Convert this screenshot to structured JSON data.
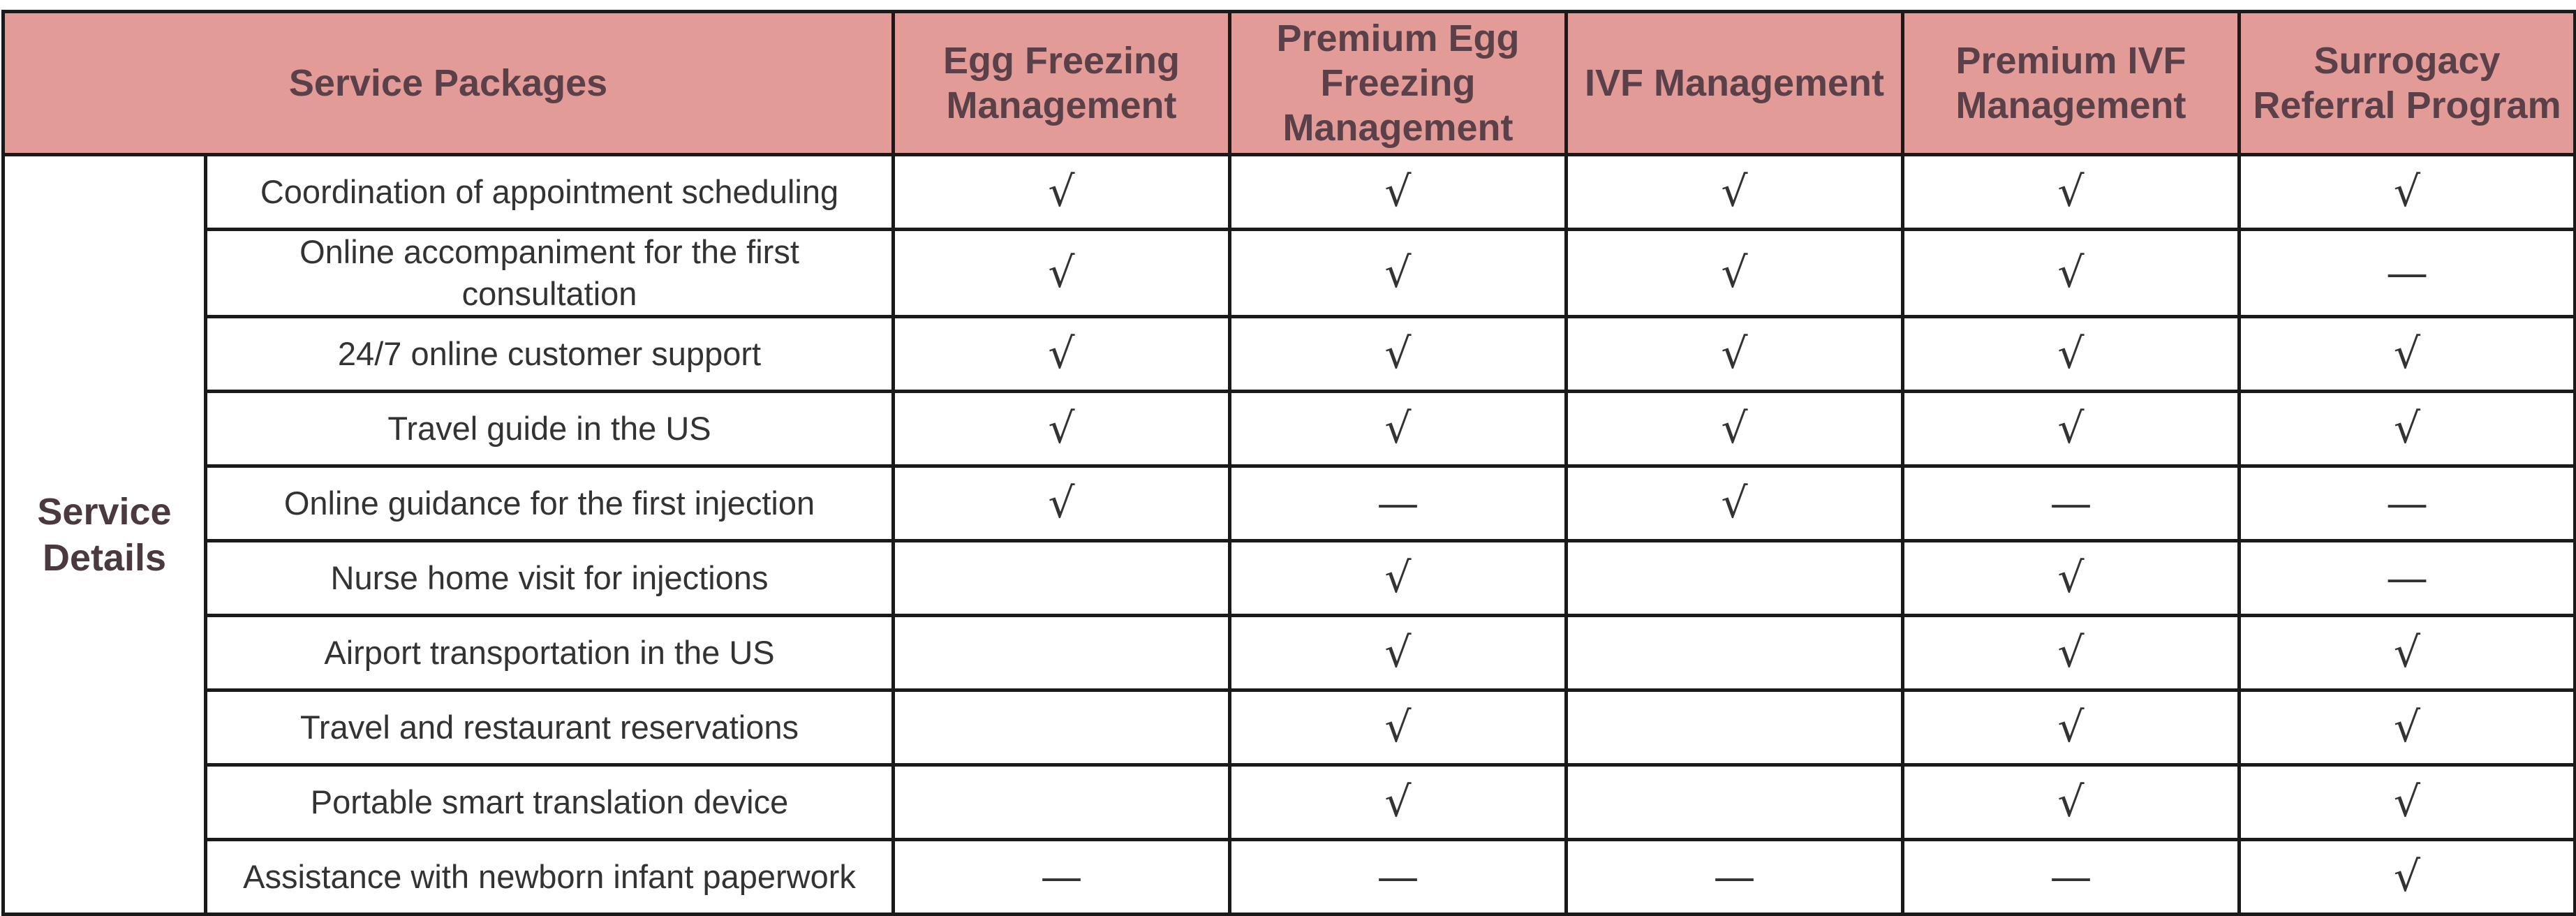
{
  "header": {
    "packages_label": "Service Packages",
    "columns": [
      "Egg Freezing Management",
      "Premium Egg Freezing Management",
      "IVF Management",
      "Premium IVF Management",
      "Surrogacy Referral Program"
    ]
  },
  "category": "Service Details",
  "rows": [
    {
      "label": "Coordination of appointment scheduling",
      "cells": [
        "√",
        "√",
        "√",
        "√",
        "√"
      ]
    },
    {
      "label": "Online accompaniment for the first consultation",
      "cells": [
        "√",
        "√",
        "√",
        "√",
        "—"
      ]
    },
    {
      "label": "24/7 online customer support",
      "cells": [
        "√",
        "√",
        "√",
        "√",
        "√"
      ]
    },
    {
      "label": "Travel guide in the US",
      "cells": [
        "√",
        "√",
        "√",
        "√",
        "√"
      ]
    },
    {
      "label": "Online guidance for the first injection",
      "cells": [
        "√",
        "—",
        "√",
        "—",
        "—"
      ]
    },
    {
      "label": "Nurse home visit for injections",
      "cells": [
        "",
        "√",
        "",
        "√",
        "—"
      ]
    },
    {
      "label": "Airport transportation in the US",
      "cells": [
        "",
        "√",
        "",
        "√",
        "√"
      ]
    },
    {
      "label": "Travel and restaurant reservations",
      "cells": [
        "",
        "√",
        "",
        "√",
        "√"
      ]
    },
    {
      "label": "Portable smart translation device",
      "cells": [
        "",
        "√",
        "",
        "√",
        "√"
      ]
    },
    {
      "label": "Assistance with newborn infant paperwork",
      "cells": [
        "—",
        "—",
        "—",
        "—",
        "√"
      ]
    }
  ]
}
